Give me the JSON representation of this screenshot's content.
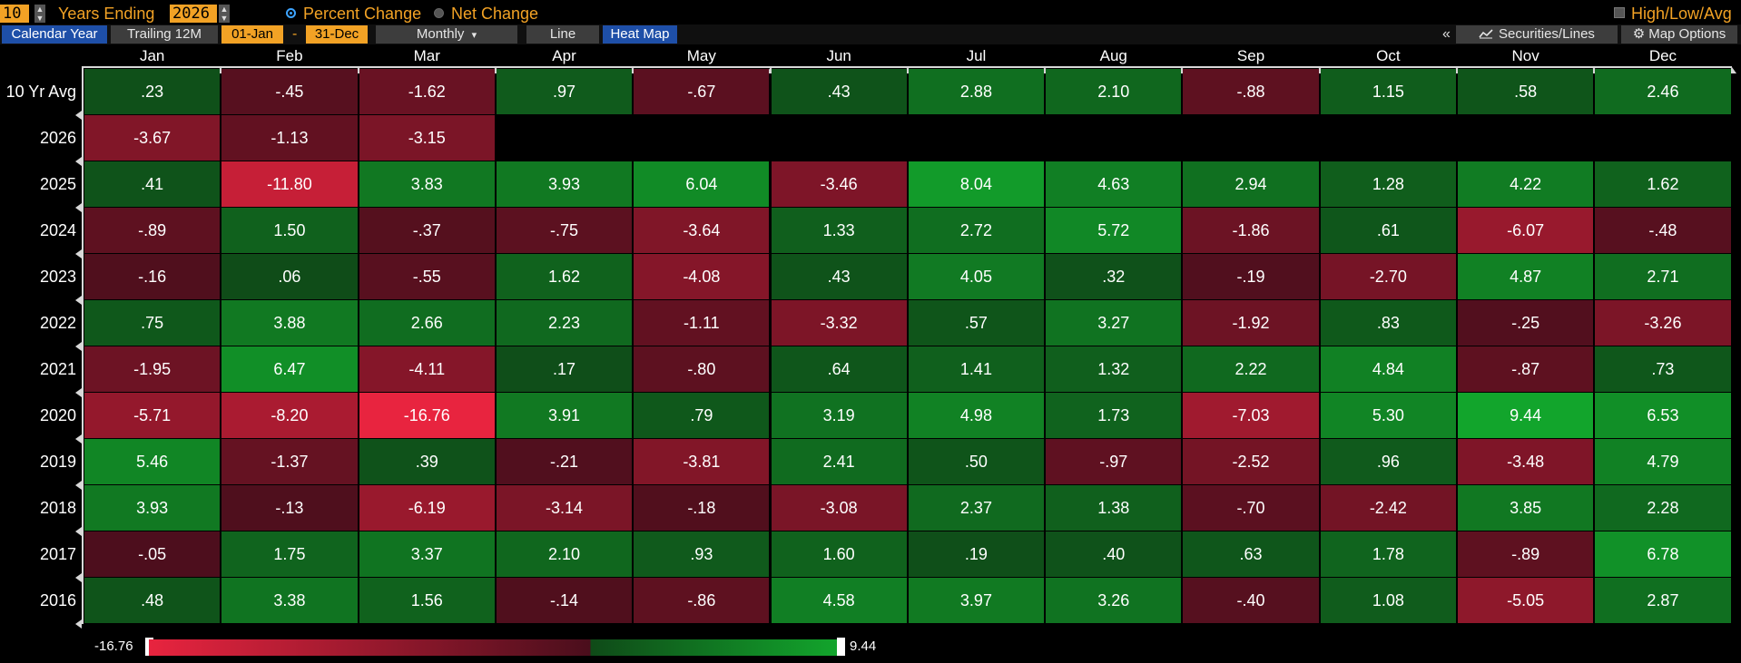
{
  "controls": {
    "years_value": "10",
    "years_ending_label": "Years Ending",
    "end_year_value": "2026",
    "percent_change_label": "Percent Change",
    "net_change_label": "Net Change",
    "high_low_avg_label": "High/Low/Avg",
    "mode": "Percent Change"
  },
  "toolbar": {
    "calendar_year": "Calendar Year",
    "trailing_12m": "Trailing 12M",
    "start_date": "01-Jan",
    "dash": "-",
    "end_date": "31-Dec",
    "period": "Monthly",
    "period_arrow": "▾",
    "line": "Line",
    "heat_map": "Heat Map",
    "collapse": "«",
    "securities_lines": "Securities/Lines",
    "map_options": "Map Options",
    "chart_icon": "line-chart-icon",
    "gear_icon": "gear-icon"
  },
  "months": [
    "Jan",
    "Feb",
    "Mar",
    "Apr",
    "May",
    "Jun",
    "Jul",
    "Aug",
    "Sep",
    "Oct",
    "Nov",
    "Dec"
  ],
  "rows": [
    {
      "label": "10 Yr Avg",
      "values": [
        ".23",
        "-.45",
        "-1.62",
        ".97",
        "-.67",
        ".43",
        "2.88",
        "2.10",
        "-.88",
        "1.15",
        ".58",
        "2.46"
      ]
    },
    {
      "label": "2026",
      "values": [
        "-3.67",
        "-1.13",
        "-3.15"
      ]
    },
    {
      "label": "2025",
      "values": [
        ".41",
        "-11.80",
        "3.83",
        "3.93",
        "6.04",
        "-3.46",
        "8.04",
        "4.63",
        "2.94",
        "1.28",
        "4.22",
        "1.62"
      ]
    },
    {
      "label": "2024",
      "values": [
        "-.89",
        "1.50",
        "-.37",
        "-.75",
        "-3.64",
        "1.33",
        "2.72",
        "5.72",
        "-1.86",
        ".61",
        "-6.07",
        "-.48"
      ]
    },
    {
      "label": "2023",
      "values": [
        "-.16",
        ".06",
        "-.55",
        "1.62",
        "-4.08",
        ".43",
        "4.05",
        ".32",
        "-.19",
        "-2.70",
        "4.87",
        "2.71"
      ]
    },
    {
      "label": "2022",
      "values": [
        ".75",
        "3.88",
        "2.66",
        "2.23",
        "-1.11",
        "-3.32",
        ".57",
        "3.27",
        "-1.92",
        ".83",
        "-.25",
        "-3.26"
      ]
    },
    {
      "label": "2021",
      "values": [
        "-1.95",
        "6.47",
        "-4.11",
        ".17",
        "-.80",
        ".64",
        "1.41",
        "1.32",
        "2.22",
        "4.84",
        "-.87",
        ".73"
      ]
    },
    {
      "label": "2020",
      "values": [
        "-5.71",
        "-8.20",
        "-16.76",
        "3.91",
        ".79",
        "3.19",
        "4.98",
        "1.73",
        "-7.03",
        "5.30",
        "9.44",
        "6.53"
      ]
    },
    {
      "label": "2019",
      "values": [
        "5.46",
        "-1.37",
        ".39",
        "-.21",
        "-3.81",
        "2.41",
        ".50",
        "-.97",
        "-2.52",
        ".96",
        "-3.48",
        "4.79"
      ]
    },
    {
      "label": "2018",
      "values": [
        "3.93",
        "-.13",
        "-6.19",
        "-3.14",
        "-.18",
        "-3.08",
        "2.37",
        "1.38",
        "-.70",
        "-2.42",
        "3.85",
        "2.28"
      ]
    },
    {
      "label": "2017",
      "values": [
        "-.05",
        "1.75",
        "3.37",
        "2.10",
        ".93",
        "1.60",
        ".19",
        ".40",
        ".63",
        "1.78",
        "-.89",
        "6.78"
      ]
    },
    {
      "label": "2016",
      "values": [
        ".48",
        "3.38",
        "1.56",
        "-.14",
        "-.86",
        "4.58",
        "3.97",
        "3.26",
        "-.40",
        "1.08",
        "-5.05",
        "2.87"
      ]
    }
  ],
  "legend": {
    "min_label": "-16.76",
    "max_label": "9.44",
    "min": -16.76,
    "max": 9.44,
    "neg_color_light": "#e8243f",
    "neg_color_dark": "#4a0e1c",
    "pos_color_dark": "#0f4a18",
    "pos_color_light": "#12a52c"
  }
}
